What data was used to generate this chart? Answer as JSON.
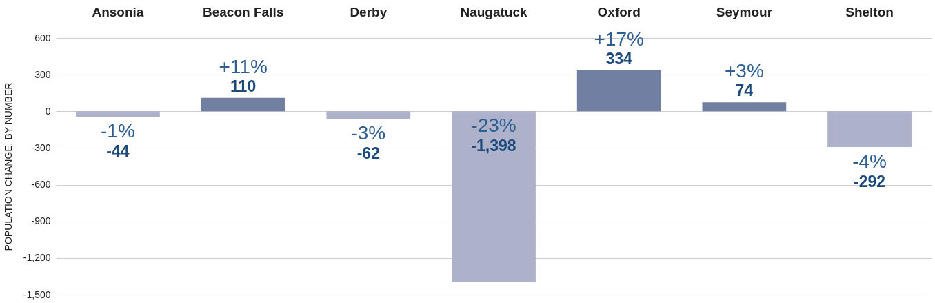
{
  "chart_data": {
    "type": "bar",
    "ylabel": "POPULATION CHANGE, BY NUMBER",
    "categories": [
      "Ansonia",
      "Beacon Falls",
      "Derby",
      "Naugatuck",
      "Oxford",
      "Seymour",
      "Shelton"
    ],
    "values": [
      -44,
      110,
      -62,
      -1398,
      334,
      74,
      -292
    ],
    "colors": [
      "#adb1c9",
      "#717fa3",
      "#adb1c9",
      "#adb1c9",
      "#717fa3",
      "#717fa3",
      "#adb1c9"
    ],
    "value_labels": [
      "-44",
      "110",
      "-62",
      "-1,398",
      "334",
      "74",
      "-292"
    ],
    "annotations": [
      "-1%",
      "+11%",
      "-3%",
      "-23%",
      "+17%",
      "+3%",
      "-4%"
    ],
    "ylim": [
      -1500,
      600
    ],
    "yticks": [
      {
        "value": -1500,
        "label": "-1,500"
      },
      {
        "value": -1200,
        "label": "-1,200"
      },
      {
        "value": -900,
        "label": "-900"
      },
      {
        "value": -600,
        "label": "-600"
      },
      {
        "value": -300,
        "label": "-300"
      },
      0,
      300,
      600
    ],
    "grid": "y"
  }
}
